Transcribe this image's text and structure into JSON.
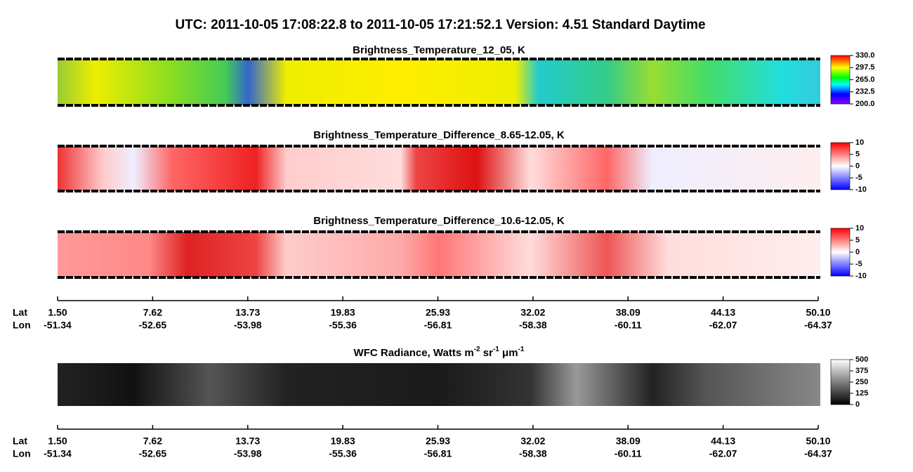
{
  "header": {
    "title": "UTC:  2011-10-05   17:08:22.8  to  2011-10-05   17:21:52.1    Version: 4.51  Standard Daytime"
  },
  "panels": [
    {
      "title": "Brightness_Temperature_12_05, K",
      "colorbar_ticks": [
        "330.0",
        "297.5",
        "265.0",
        "232.5",
        "200.0"
      ]
    },
    {
      "title": "Brightness_Temperature_Difference_8.65-12.05, K",
      "colorbar_ticks": [
        "10",
        "5",
        "0",
        "-5",
        "-10"
      ]
    },
    {
      "title": "Brightness_Temperature_Difference_10.6-12.05, K",
      "colorbar_ticks": [
        "10",
        "5",
        "0",
        "-5",
        "-10"
      ]
    },
    {
      "title": [
        "WFC Radiance, Watts m",
        "-2",
        " sr",
        "-1",
        " μm",
        "-1"
      ],
      "colorbar_ticks": [
        "500",
        "375",
        "250",
        "125",
        "0"
      ]
    }
  ],
  "axes": [
    {
      "lat_label": "Lat",
      "lon_label": "Lon",
      "lat": [
        "1.50",
        "7.62",
        "13.73",
        "19.83",
        "25.93",
        "32.02",
        "38.09",
        "44.13",
        "50.10"
      ],
      "lon": [
        "-51.34",
        "-52.65",
        "-53.98",
        "-55.36",
        "-56.81",
        "-58.38",
        "-60.11",
        "-62.07",
        "-64.37"
      ]
    },
    {
      "lat_label": "Lat",
      "lon_label": "Lon",
      "lat": [
        "1.50",
        "7.62",
        "13.73",
        "19.83",
        "25.93",
        "32.02",
        "38.09",
        "44.13",
        "50.10"
      ],
      "lon": [
        "-51.34",
        "-52.65",
        "-53.98",
        "-55.36",
        "-56.81",
        "-58.38",
        "-60.11",
        "-62.07",
        "-64.37"
      ]
    }
  ]
}
